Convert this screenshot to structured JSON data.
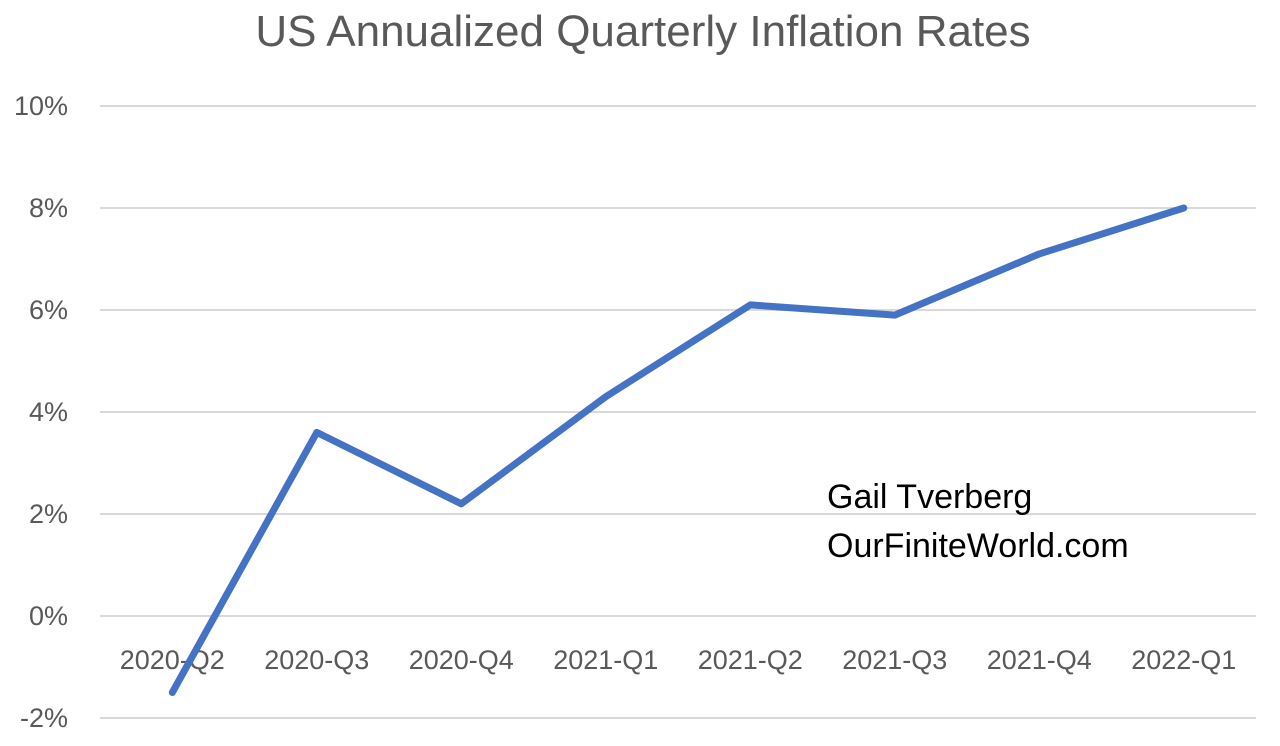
{
  "chart_data": {
    "type": "line",
    "title": "US Annualized Quarterly Inflation Rates",
    "categories": [
      "2020-Q2",
      "2020-Q3",
      "2020-Q4",
      "2021-Q1",
      "2021-Q2",
      "2021-Q3",
      "2021-Q4",
      "2022-Q1"
    ],
    "series": [
      {
        "values": [
          -1.5,
          3.6,
          2.2,
          4.3,
          6.1,
          5.9,
          7.1,
          8.0
        ]
      }
    ],
    "ylim": [
      -2,
      10
    ],
    "yticks": [
      -2,
      0,
      2,
      4,
      6,
      8,
      10
    ],
    "ytick_labels": [
      "-2%",
      "0%",
      "2%",
      "4%",
      "6%",
      "8%",
      "10%"
    ],
    "grid": true,
    "annotations": [
      "Gail Tverberg",
      "OurFiniteWorld.com"
    ],
    "colors": {
      "series": "#4472c4",
      "grid": "#d9d9d9",
      "text": "#595959"
    }
  }
}
